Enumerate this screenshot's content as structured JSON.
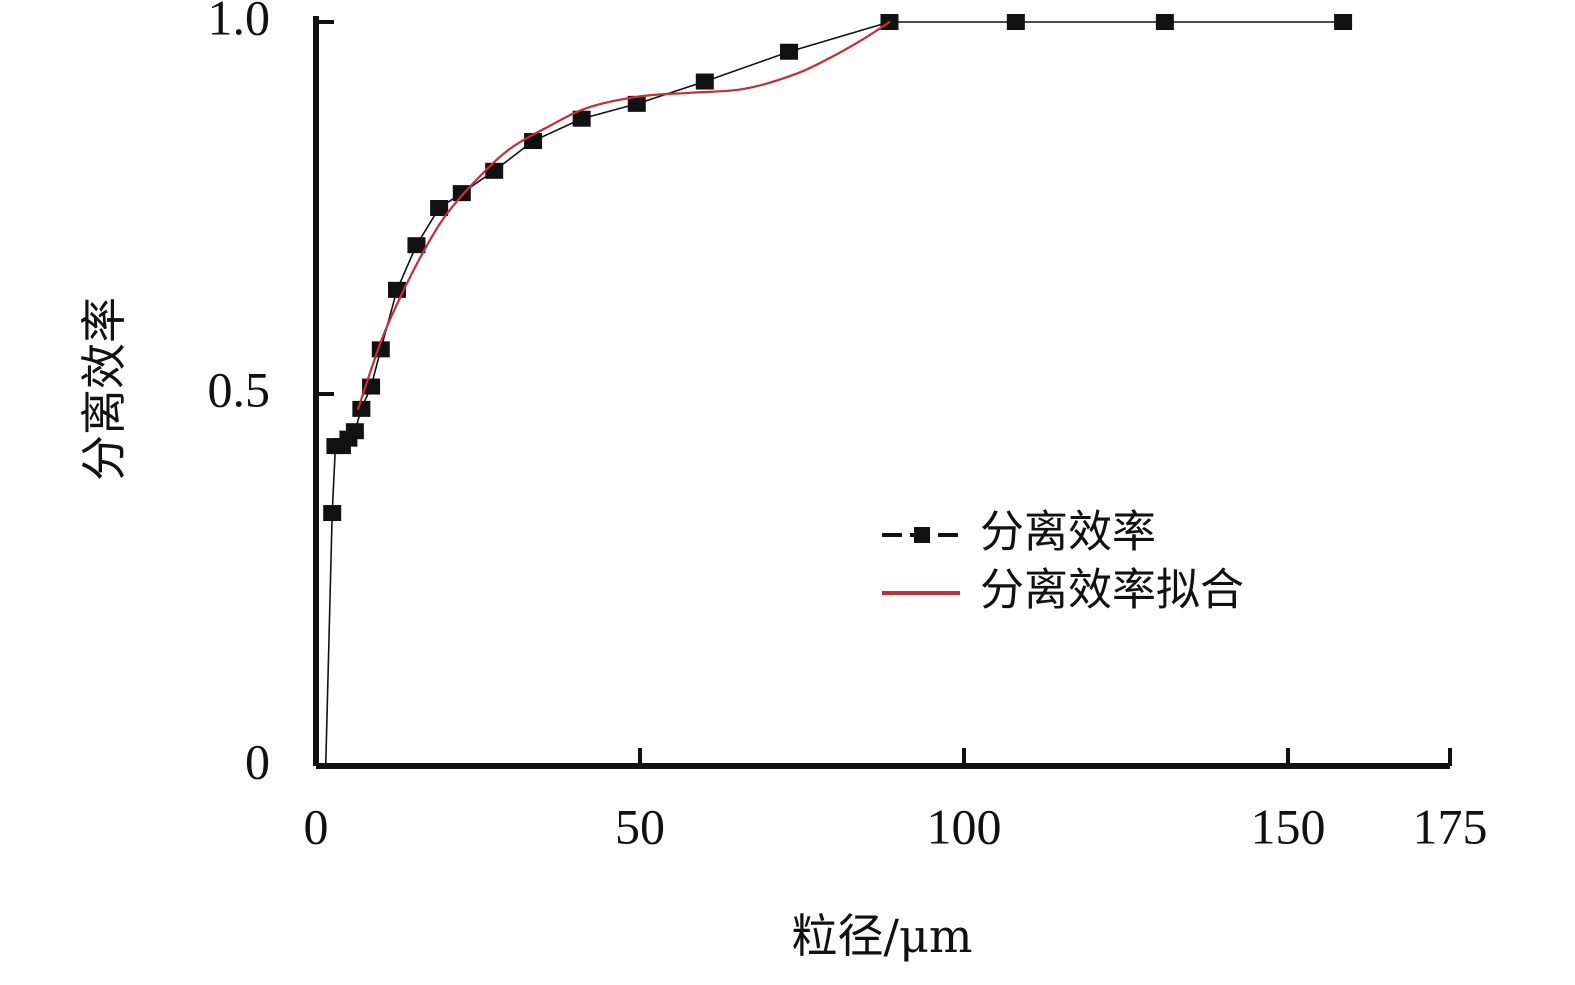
{
  "chart_data": {
    "type": "line",
    "title": "",
    "xlabel": "粒径/μm",
    "ylabel": "分离效率",
    "xlim": [
      0,
      175
    ],
    "ylim": [
      0,
      1.0
    ],
    "x_ticks": [
      0,
      50,
      100,
      150,
      175
    ],
    "x_tick_labels": [
      "0",
      "50",
      "100",
      "150",
      "175"
    ],
    "y_ticks": [
      0,
      0.5,
      1.0
    ],
    "y_tick_labels": [
      "0",
      "0.5",
      "1.0"
    ],
    "grid": false,
    "legend_position": "center-right",
    "series": [
      {
        "name": "分离效率",
        "style": "line-with-square-markers",
        "color": "#111111",
        "points": [
          {
            "x": 1.5,
            "y": 0.0
          },
          {
            "x": 2.5,
            "y": 0.34
          },
          {
            "x": 3.0,
            "y": 0.43
          },
          {
            "x": 4.0,
            "y": 0.43
          },
          {
            "x": 5.0,
            "y": 0.44
          },
          {
            "x": 6.0,
            "y": 0.45
          },
          {
            "x": 7.0,
            "y": 0.48
          },
          {
            "x": 8.5,
            "y": 0.51
          },
          {
            "x": 10.0,
            "y": 0.56
          },
          {
            "x": 12.5,
            "y": 0.64
          },
          {
            "x": 15.5,
            "y": 0.7
          },
          {
            "x": 19.0,
            "y": 0.75
          },
          {
            "x": 22.5,
            "y": 0.77
          },
          {
            "x": 27.5,
            "y": 0.8
          },
          {
            "x": 33.5,
            "y": 0.84
          },
          {
            "x": 41.0,
            "y": 0.87
          },
          {
            "x": 49.5,
            "y": 0.89
          },
          {
            "x": 60.0,
            "y": 0.92
          },
          {
            "x": 73.0,
            "y": 0.96
          },
          {
            "x": 88.5,
            "y": 1.0
          },
          {
            "x": 108.0,
            "y": 1.0
          },
          {
            "x": 131.0,
            "y": 1.0
          },
          {
            "x": 158.5,
            "y": 1.0
          }
        ],
        "marker_points": [
          {
            "x": 2.5,
            "y": 0.34
          },
          {
            "x": 3.0,
            "y": 0.43
          },
          {
            "x": 4.0,
            "y": 0.43
          },
          {
            "x": 5.0,
            "y": 0.44
          },
          {
            "x": 6.0,
            "y": 0.45
          },
          {
            "x": 7.0,
            "y": 0.48
          },
          {
            "x": 8.5,
            "y": 0.51
          },
          {
            "x": 10.0,
            "y": 0.56
          },
          {
            "x": 12.5,
            "y": 0.64
          },
          {
            "x": 15.5,
            "y": 0.7
          },
          {
            "x": 19.0,
            "y": 0.75
          },
          {
            "x": 22.5,
            "y": 0.77
          },
          {
            "x": 27.5,
            "y": 0.8
          },
          {
            "x": 33.5,
            "y": 0.84
          },
          {
            "x": 41.0,
            "y": 0.87
          },
          {
            "x": 49.5,
            "y": 0.89
          },
          {
            "x": 60.0,
            "y": 0.92
          },
          {
            "x": 73.0,
            "y": 0.96
          },
          {
            "x": 88.5,
            "y": 1.0
          },
          {
            "x": 108.0,
            "y": 1.0
          },
          {
            "x": 131.0,
            "y": 1.0
          },
          {
            "x": 158.5,
            "y": 1.0
          }
        ]
      },
      {
        "name": "分离效率拟合",
        "style": "smooth-line",
        "color": "#cc2b36",
        "points": [
          {
            "x": 6.5,
            "y": 0.48
          },
          {
            "x": 10.0,
            "y": 0.57
          },
          {
            "x": 13.0,
            "y": 0.63
          },
          {
            "x": 16.5,
            "y": 0.69
          },
          {
            "x": 20.0,
            "y": 0.74
          },
          {
            "x": 25.0,
            "y": 0.79
          },
          {
            "x": 30.0,
            "y": 0.83
          },
          {
            "x": 36.0,
            "y": 0.86
          },
          {
            "x": 42.0,
            "y": 0.885
          },
          {
            "x": 50.0,
            "y": 0.9
          },
          {
            "x": 58.0,
            "y": 0.905
          },
          {
            "x": 66.0,
            "y": 0.91
          },
          {
            "x": 74.0,
            "y": 0.93
          },
          {
            "x": 80.0,
            "y": 0.955
          },
          {
            "x": 85.0,
            "y": 0.98
          },
          {
            "x": 88.5,
            "y": 1.0
          }
        ]
      }
    ]
  }
}
